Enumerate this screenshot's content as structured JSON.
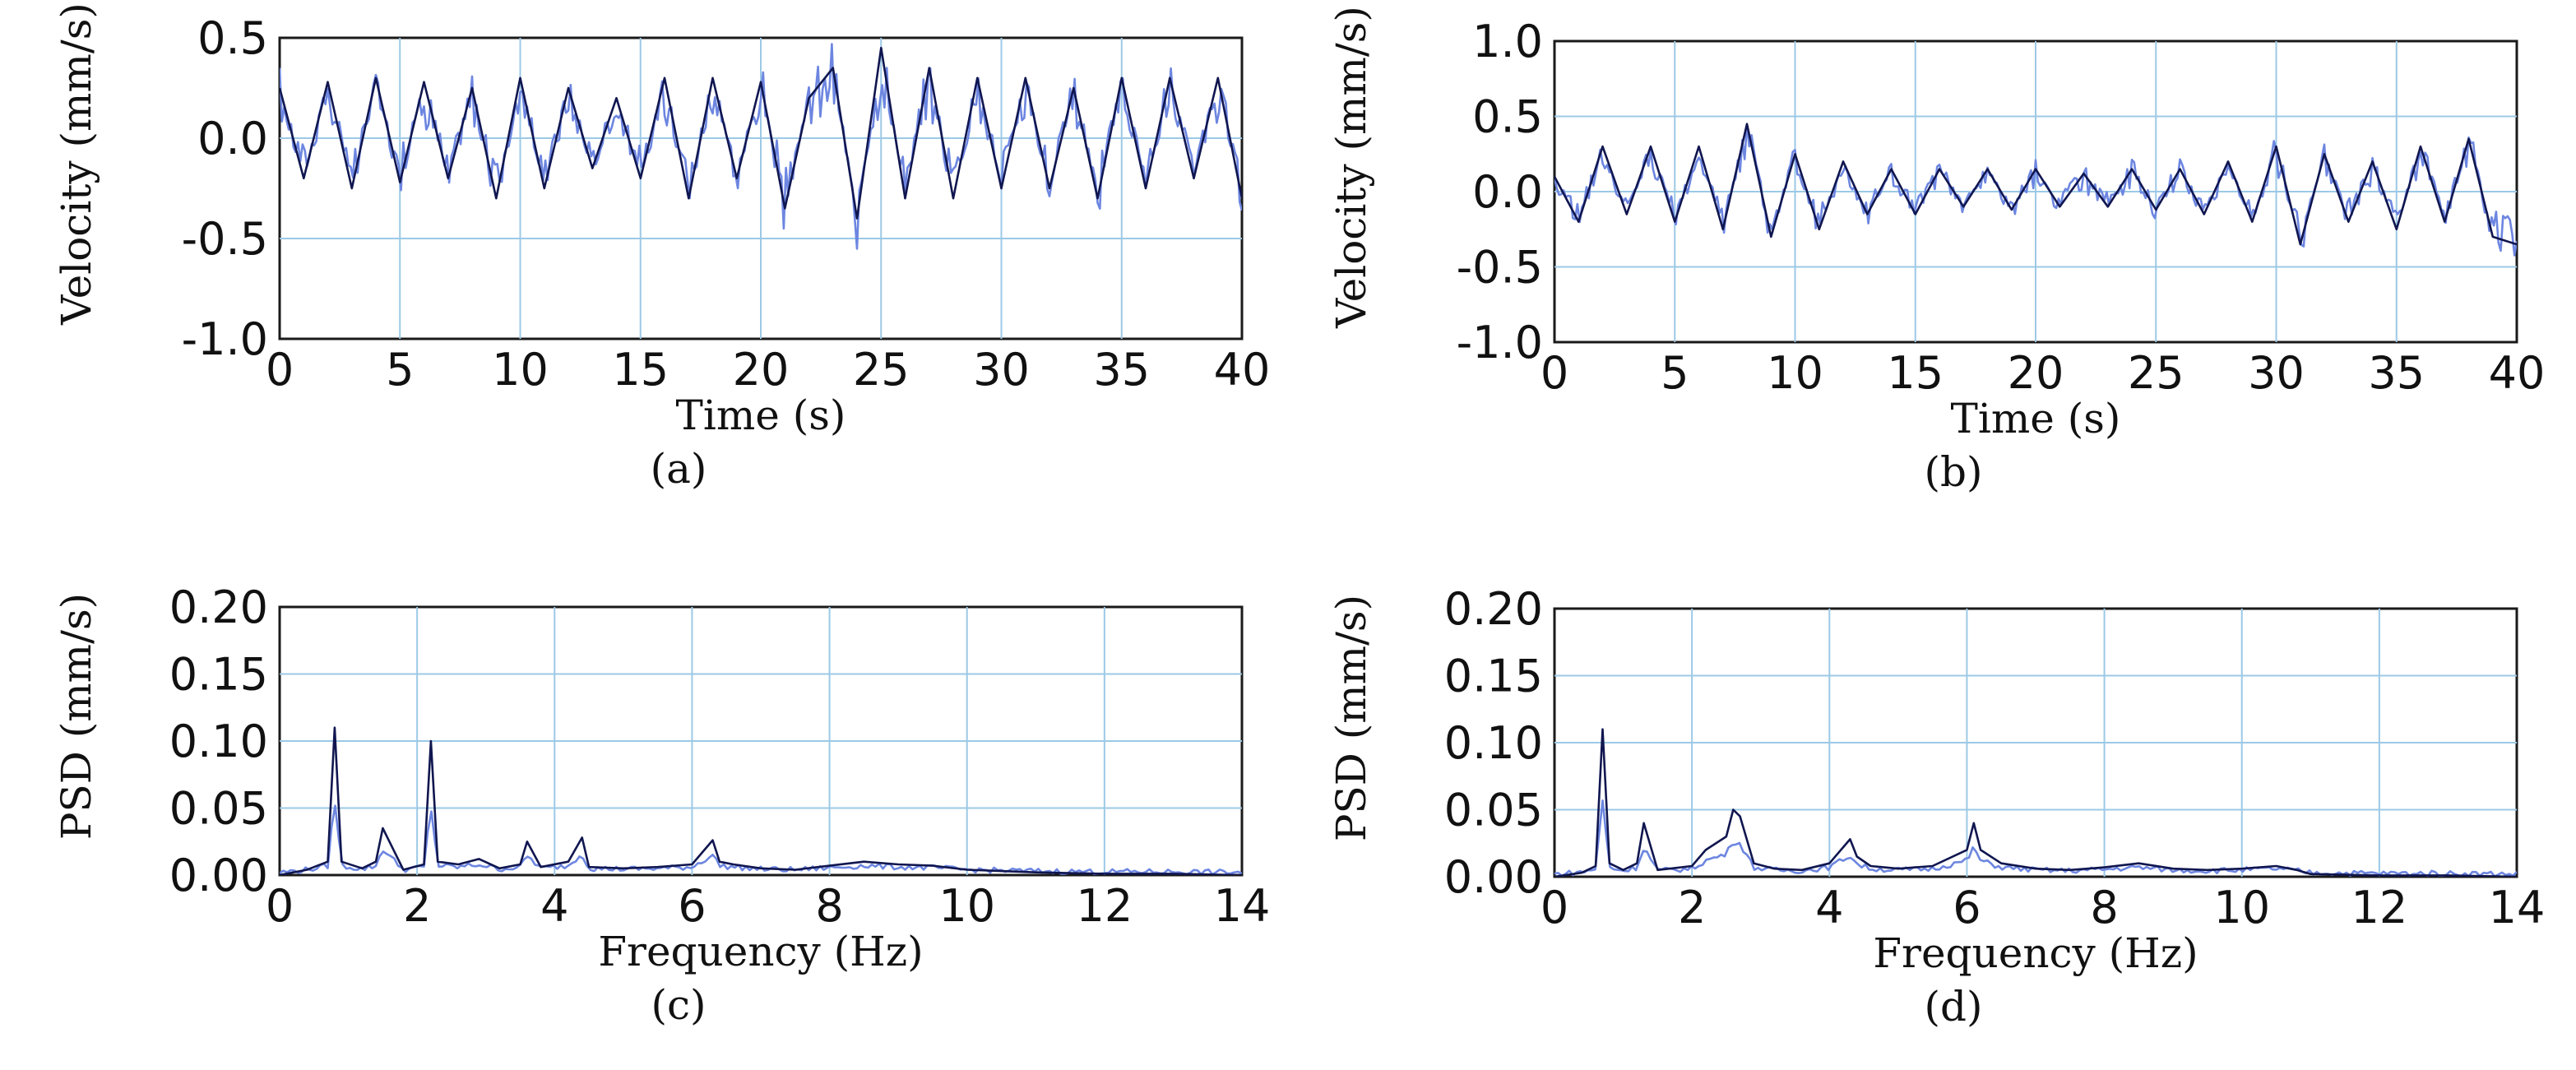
{
  "colors": {
    "trace_dark": "#10164f",
    "trace_mid": "#2b4db8",
    "trace_light": "#6d86e0",
    "grid": "#9cc9e6"
  },
  "chart_data": [
    {
      "id": "a",
      "type": "line",
      "caption": "(a)",
      "xlabel": "Time (s)",
      "ylabel": "Velocity (mm/s)",
      "xlim": [
        0,
        40
      ],
      "ylim": [
        -1.0,
        0.5
      ],
      "xticks": [
        "0",
        "5",
        "10",
        "15",
        "20",
        "25",
        "30",
        "35",
        "40"
      ],
      "yticks": [
        "-1.0",
        "-0.5",
        "0.0",
        "0.5"
      ],
      "grid": true,
      "series": [
        {
          "x": [
            0,
            1,
            2,
            3,
            4,
            5,
            6,
            7,
            8,
            9,
            10,
            11,
            12,
            13,
            14,
            15,
            16,
            17,
            18,
            19,
            20,
            21,
            22,
            23,
            24,
            25,
            26,
            27,
            28,
            29,
            30,
            31,
            32,
            33,
            34,
            35,
            36,
            37,
            38,
            39,
            40
          ],
          "y": [
            0.25,
            -0.2,
            0.28,
            -0.25,
            0.3,
            -0.22,
            0.28,
            -0.2,
            0.25,
            -0.3,
            0.3,
            -0.25,
            0.25,
            -0.15,
            0.2,
            -0.2,
            0.3,
            -0.3,
            0.3,
            -0.2,
            0.28,
            -0.35,
            0.2,
            0.35,
            -0.4,
            0.45,
            -0.3,
            0.35,
            -0.3,
            0.3,
            -0.25,
            0.3,
            -0.25,
            0.25,
            -0.3,
            0.3,
            -0.25,
            0.3,
            -0.2,
            0.3,
            -0.3
          ]
        }
      ]
    },
    {
      "id": "b",
      "type": "line",
      "caption": "(b)",
      "xlabel": "Time (s)",
      "ylabel": "Velocity (mm/s)",
      "xlim": [
        0,
        40
      ],
      "ylim": [
        -1.0,
        1.0
      ],
      "xticks": [
        "0",
        "5",
        "10",
        "15",
        "20",
        "25",
        "30",
        "35",
        "40"
      ],
      "yticks": [
        "-1.0",
        "-0.5",
        "0.0",
        "0.5",
        "1.0"
      ],
      "grid": true,
      "series": [
        {
          "x": [
            0,
            1,
            2,
            3,
            4,
            5,
            6,
            7,
            8,
            9,
            10,
            11,
            12,
            13,
            14,
            15,
            16,
            17,
            18,
            19,
            20,
            21,
            22,
            23,
            24,
            25,
            26,
            27,
            28,
            29,
            30,
            31,
            32,
            33,
            34,
            35,
            36,
            37,
            38,
            39,
            40
          ],
          "y": [
            0.1,
            -0.2,
            0.3,
            -0.15,
            0.3,
            -0.2,
            0.3,
            -0.25,
            0.45,
            -0.3,
            0.25,
            -0.25,
            0.2,
            -0.15,
            0.15,
            -0.15,
            0.15,
            -0.1,
            0.15,
            -0.12,
            0.15,
            -0.1,
            0.12,
            -0.1,
            0.15,
            -0.12,
            0.15,
            -0.15,
            0.2,
            -0.2,
            0.3,
            -0.35,
            0.25,
            -0.2,
            0.2,
            -0.25,
            0.3,
            -0.2,
            0.35,
            -0.3,
            -0.35
          ]
        }
      ]
    },
    {
      "id": "c",
      "type": "line",
      "caption": "(c)",
      "xlabel": "Frequency (Hz)",
      "ylabel": "PSD (mm/s)",
      "xlim": [
        0,
        14
      ],
      "ylim": [
        0,
        0.2
      ],
      "xticks": [
        "0",
        "2",
        "4",
        "6",
        "8",
        "10",
        "12",
        "14"
      ],
      "yticks": [
        "0.00",
        "0.05",
        "0.10",
        "0.15",
        "0.20"
      ],
      "grid": true,
      "series": [
        {
          "x": [
            0,
            0.4,
            0.7,
            0.8,
            0.9,
            1.2,
            1.4,
            1.5,
            1.8,
            2.1,
            2.2,
            2.3,
            2.6,
            2.9,
            3.2,
            3.5,
            3.6,
            3.8,
            4.2,
            4.4,
            4.5,
            5.0,
            5.5,
            6.0,
            6.3,
            6.4,
            6.6,
            7.0,
            7.5,
            8.0,
            8.5,
            9.0,
            9.5,
            10.0,
            10.5,
            11.0,
            12.0,
            13.0,
            14.0
          ],
          "y": [
            0.0,
            0.004,
            0.01,
            0.11,
            0.01,
            0.005,
            0.01,
            0.035,
            0.004,
            0.008,
            0.1,
            0.01,
            0.008,
            0.012,
            0.005,
            0.008,
            0.025,
            0.006,
            0.01,
            0.028,
            0.006,
            0.005,
            0.006,
            0.008,
            0.026,
            0.01,
            0.008,
            0.005,
            0.004,
            0.007,
            0.01,
            0.008,
            0.007,
            0.004,
            0.003,
            0.002,
            0.001,
            0.001,
            0.0
          ]
        }
      ]
    },
    {
      "id": "d",
      "type": "line",
      "caption": "(d)",
      "xlabel": "Frequency (Hz)",
      "ylabel": "PSD (mm/s)",
      "xlim": [
        0,
        14
      ],
      "ylim": [
        0,
        0.2
      ],
      "xticks": [
        "0",
        "2",
        "4",
        "6",
        "8",
        "10",
        "12",
        "14"
      ],
      "yticks": [
        "0.00",
        "0.05",
        "0.10",
        "0.15",
        "0.20"
      ],
      "grid": true,
      "series": [
        {
          "x": [
            0,
            0.4,
            0.6,
            0.7,
            0.8,
            1.0,
            1.2,
            1.3,
            1.5,
            2.0,
            2.2,
            2.5,
            2.6,
            2.7,
            2.9,
            3.2,
            3.6,
            4.0,
            4.3,
            4.4,
            4.6,
            5.0,
            5.5,
            6.0,
            6.1,
            6.2,
            6.5,
            7.0,
            7.5,
            8.0,
            8.5,
            9.0,
            9.5,
            10.0,
            10.5,
            10.8,
            11.0,
            12.0,
            13.0,
            14.0
          ],
          "y": [
            0.0,
            0.003,
            0.008,
            0.11,
            0.01,
            0.005,
            0.01,
            0.04,
            0.005,
            0.008,
            0.02,
            0.03,
            0.05,
            0.045,
            0.01,
            0.006,
            0.005,
            0.01,
            0.028,
            0.015,
            0.008,
            0.006,
            0.008,
            0.02,
            0.04,
            0.02,
            0.01,
            0.006,
            0.005,
            0.007,
            0.01,
            0.006,
            0.005,
            0.006,
            0.008,
            0.005,
            0.002,
            0.001,
            0.001,
            0.0
          ]
        }
      ]
    }
  ]
}
